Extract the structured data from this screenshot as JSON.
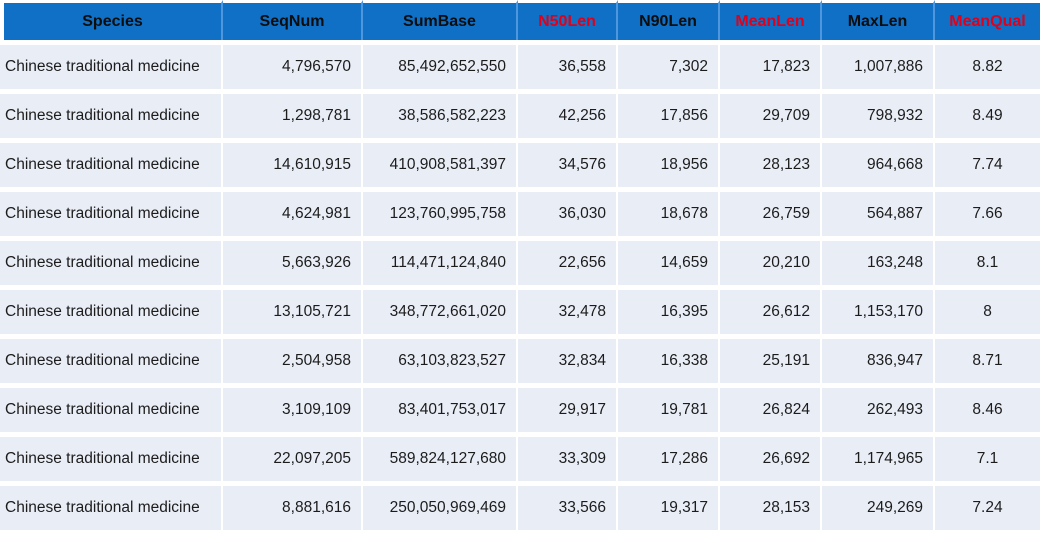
{
  "table": {
    "columns": [
      {
        "label": "Species",
        "red": false,
        "align": "left"
      },
      {
        "label": "SeqNum",
        "red": false,
        "align": "right"
      },
      {
        "label": "SumBase",
        "red": false,
        "align": "right"
      },
      {
        "label": "N50Len",
        "red": true,
        "align": "right"
      },
      {
        "label": "N90Len",
        "red": false,
        "align": "right"
      },
      {
        "label": "MeanLen",
        "red": true,
        "align": "right"
      },
      {
        "label": "MaxLen",
        "red": false,
        "align": "right"
      },
      {
        "label": "MeanQual",
        "red": true,
        "align": "center"
      }
    ],
    "rows": [
      [
        "Chinese traditional medicine",
        "4,796,570",
        "85,492,652,550",
        "36,558",
        "7,302",
        "17,823",
        "1,007,886",
        "8.82"
      ],
      [
        "Chinese traditional medicine",
        "1,298,781",
        "38,586,582,223",
        "42,256",
        "17,856",
        "29,709",
        "798,932",
        "8.49"
      ],
      [
        "Chinese traditional medicine",
        "14,610,915",
        "410,908,581,397",
        "34,576",
        "18,956",
        "28,123",
        "964,668",
        "7.74"
      ],
      [
        "Chinese traditional medicine",
        "4,624,981",
        "123,760,995,758",
        "36,030",
        "18,678",
        "26,759",
        "564,887",
        "7.66"
      ],
      [
        "Chinese traditional medicine",
        "5,663,926",
        "114,471,124,840",
        "22,656",
        "14,659",
        "20,210",
        "163,248",
        "8.1"
      ],
      [
        "Chinese traditional medicine",
        "13,105,721",
        "348,772,661,020",
        "32,478",
        "16,395",
        "26,612",
        "1,153,170",
        "8"
      ],
      [
        "Chinese traditional medicine",
        "2,504,958",
        "63,103,823,527",
        "32,834",
        "16,338",
        "25,191",
        "836,947",
        "8.71"
      ],
      [
        "Chinese traditional medicine",
        "3,109,109",
        "83,401,753,017",
        "29,917",
        "19,781",
        "26,824",
        "262,493",
        "8.46"
      ],
      [
        "Chinese traditional medicine",
        "22,097,205",
        "589,824,127,680",
        "33,309",
        "17,286",
        "26,692",
        "1,174,965",
        "7.1"
      ],
      [
        "Chinese traditional medicine",
        "8,881,616",
        "250,050,969,469",
        "33,566",
        "19,317",
        "28,153",
        "249,269",
        "7.24"
      ]
    ]
  },
  "colors": {
    "header_bg": "#0F70C6",
    "header_divider": "#4E96DE",
    "header_text": "#0D0D0D",
    "header_text_red": "#E00019",
    "row_bg": "#E9EDF6",
    "gridline": "#FFFFFF",
    "cell_text": "#1C1C1C"
  }
}
